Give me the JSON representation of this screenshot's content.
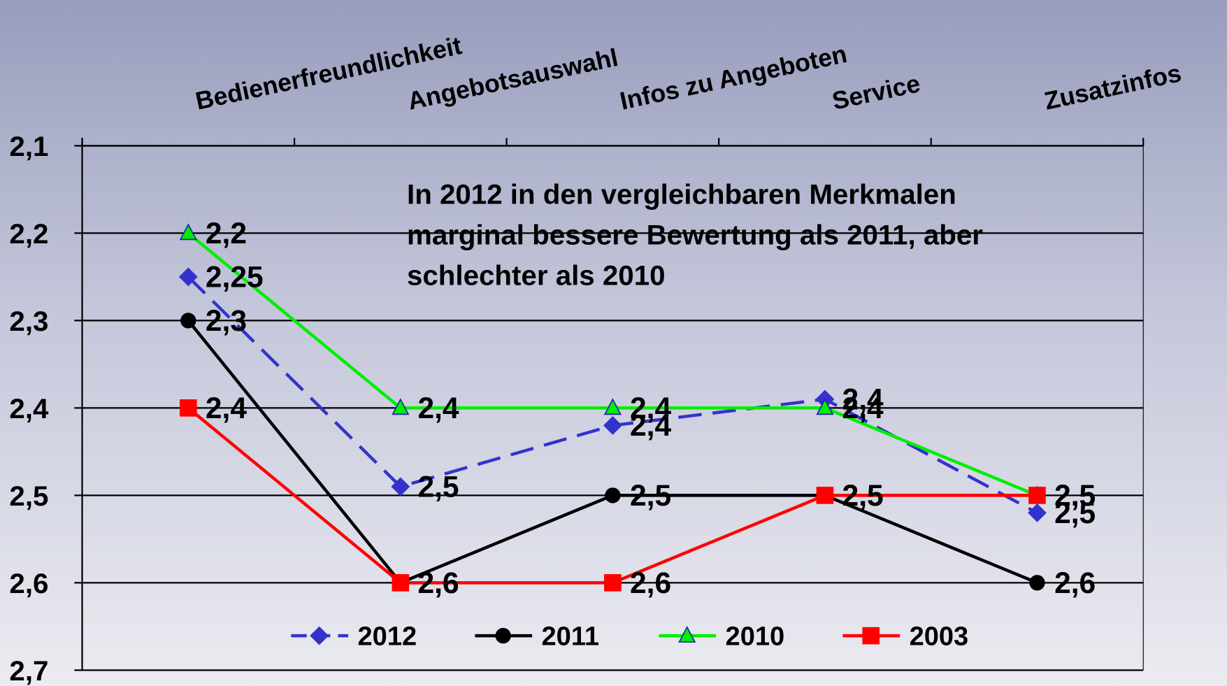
{
  "chart_data": {
    "type": "line",
    "annotation": [
      "In 2012 in den vergleichbaren Merkmalen",
      "marginal bessere Bewertung als 2011, aber",
      "schlechter als 2010"
    ],
    "categories": [
      "Bedienerfreundlichkeit",
      "Angebotsauswahl",
      "Infos zu Angeboten",
      "Service",
      "Zusatzinfos"
    ],
    "ylim": [
      2.1,
      2.7
    ],
    "y_reversed": true,
    "yticks": [
      {
        "value": 2.1,
        "label": "2,1"
      },
      {
        "value": 2.2,
        "label": "2,2"
      },
      {
        "value": 2.3,
        "label": "2,3"
      },
      {
        "value": 2.4,
        "label": "2,4"
      },
      {
        "value": 2.5,
        "label": "2,5"
      },
      {
        "value": 2.6,
        "label": "2,6"
      },
      {
        "value": 2.7,
        "label": "2,7"
      }
    ],
    "grid": true,
    "legend": "bottom",
    "series": [
      {
        "name": "2012",
        "color": "#3333cc",
        "dashed": true,
        "marker": "diamond",
        "values": [
          2.25,
          2.49,
          2.42,
          2.39,
          2.52
        ],
        "value_labels": [
          "2,25",
          "2,5",
          "2,4",
          "2,4",
          "2,5"
        ]
      },
      {
        "name": "2011",
        "color": "#000000",
        "marker": "circle",
        "values": [
          2.3,
          2.6,
          2.5,
          2.5,
          2.6
        ],
        "value_labels": [
          "2,3",
          "2,6",
          "2,5",
          "2,5",
          "2,6"
        ]
      },
      {
        "name": "2010",
        "color": "#00ee00",
        "marker": "triangle",
        "values": [
          2.2,
          2.4,
          2.4,
          2.4,
          2.5
        ],
        "value_labels": [
          "2,2",
          "2,4",
          "2,4",
          "2,4",
          "2,5"
        ]
      },
      {
        "name": "2003",
        "color": "#ff0000",
        "marker": "square",
        "values": [
          2.4,
          2.6,
          2.6,
          2.5,
          2.5
        ],
        "value_labels": [
          "2,4",
          "2,6",
          "2,6",
          "2,5",
          "2,5"
        ]
      }
    ]
  }
}
